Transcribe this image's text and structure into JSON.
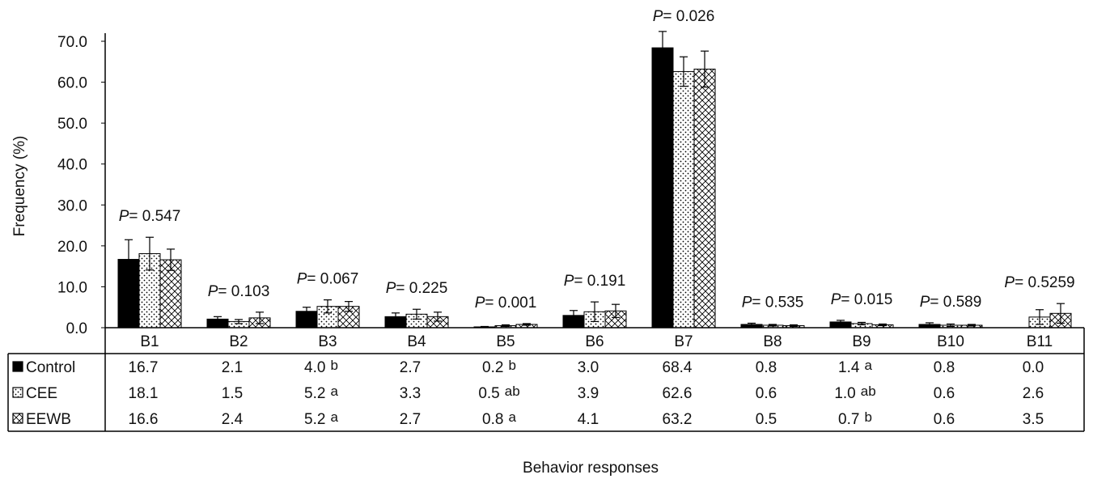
{
  "chart_data": {
    "type": "bar",
    "title": "",
    "xlabel": "Behavior responses",
    "ylabel": "Frequency (%)",
    "ylim": [
      0,
      70
    ],
    "yticks": [
      "0.0",
      "10.0",
      "20.0",
      "30.0",
      "40.0",
      "50.0",
      "60.0",
      "70.0"
    ],
    "grid": false,
    "categories": [
      "B1",
      "B2",
      "B3",
      "B4",
      "B5",
      "B6",
      "B7",
      "B8",
      "B9",
      "B10",
      "B11"
    ],
    "series": [
      {
        "name": "Control",
        "pattern": "solid-black",
        "values": [
          16.7,
          2.1,
          4.0,
          2.7,
          0.2,
          3.0,
          68.4,
          0.8,
          1.4,
          0.8,
          0.0
        ],
        "errors": [
          4.8,
          0.6,
          1.0,
          0.9,
          0.1,
          1.2,
          4.0,
          0.3,
          0.4,
          0.4,
          0.0
        ],
        "labels": [
          "16.7",
          "2.1",
          "4.0",
          "2.7",
          "0.2",
          "3.0",
          "68.4",
          "0.8",
          "1.4",
          "0.8",
          "0.0"
        ],
        "letters": [
          "",
          "",
          "b",
          "",
          "b",
          "",
          "",
          "",
          "a",
          "",
          ""
        ]
      },
      {
        "name": "CEE",
        "pattern": "dotted",
        "values": [
          18.1,
          1.5,
          5.2,
          3.3,
          0.5,
          3.9,
          62.6,
          0.6,
          1.0,
          0.6,
          2.6
        ],
        "errors": [
          4.0,
          0.5,
          1.6,
          1.2,
          0.2,
          2.4,
          3.6,
          0.2,
          0.3,
          0.3,
          1.8
        ],
        "labels": [
          "18.1",
          "1.5",
          "5.2",
          "3.3",
          "0.5",
          "3.9",
          "62.6",
          "0.6",
          "1.0",
          "0.6",
          "2.6"
        ],
        "letters": [
          "",
          "",
          "a",
          "",
          "ab",
          "",
          "",
          "",
          "ab",
          "",
          ""
        ]
      },
      {
        "name": "EEWB",
        "pattern": "crosshatch",
        "values": [
          16.6,
          2.4,
          5.2,
          2.7,
          0.8,
          4.1,
          63.2,
          0.5,
          0.7,
          0.6,
          3.5
        ],
        "errors": [
          2.6,
          1.4,
          1.2,
          1.1,
          0.2,
          1.6,
          4.4,
          0.2,
          0.2,
          0.2,
          2.4
        ],
        "labels": [
          "16.6",
          "2.4",
          "5.2",
          "2.7",
          "0.8",
          "4.1",
          "63.2",
          "0.5",
          "0.7",
          "0.6",
          "3.5"
        ],
        "letters": [
          "",
          "",
          "a",
          "",
          "a",
          "",
          "",
          "",
          "b",
          "",
          ""
        ]
      }
    ],
    "p_values": [
      "0.547",
      "0.103",
      "0.067",
      "0.225",
      "0.001",
      "0.191",
      "0.026",
      "0.535",
      "0.015",
      "0.589",
      "0.5259"
    ],
    "p_prefix": "P",
    "p_sep": "= "
  }
}
